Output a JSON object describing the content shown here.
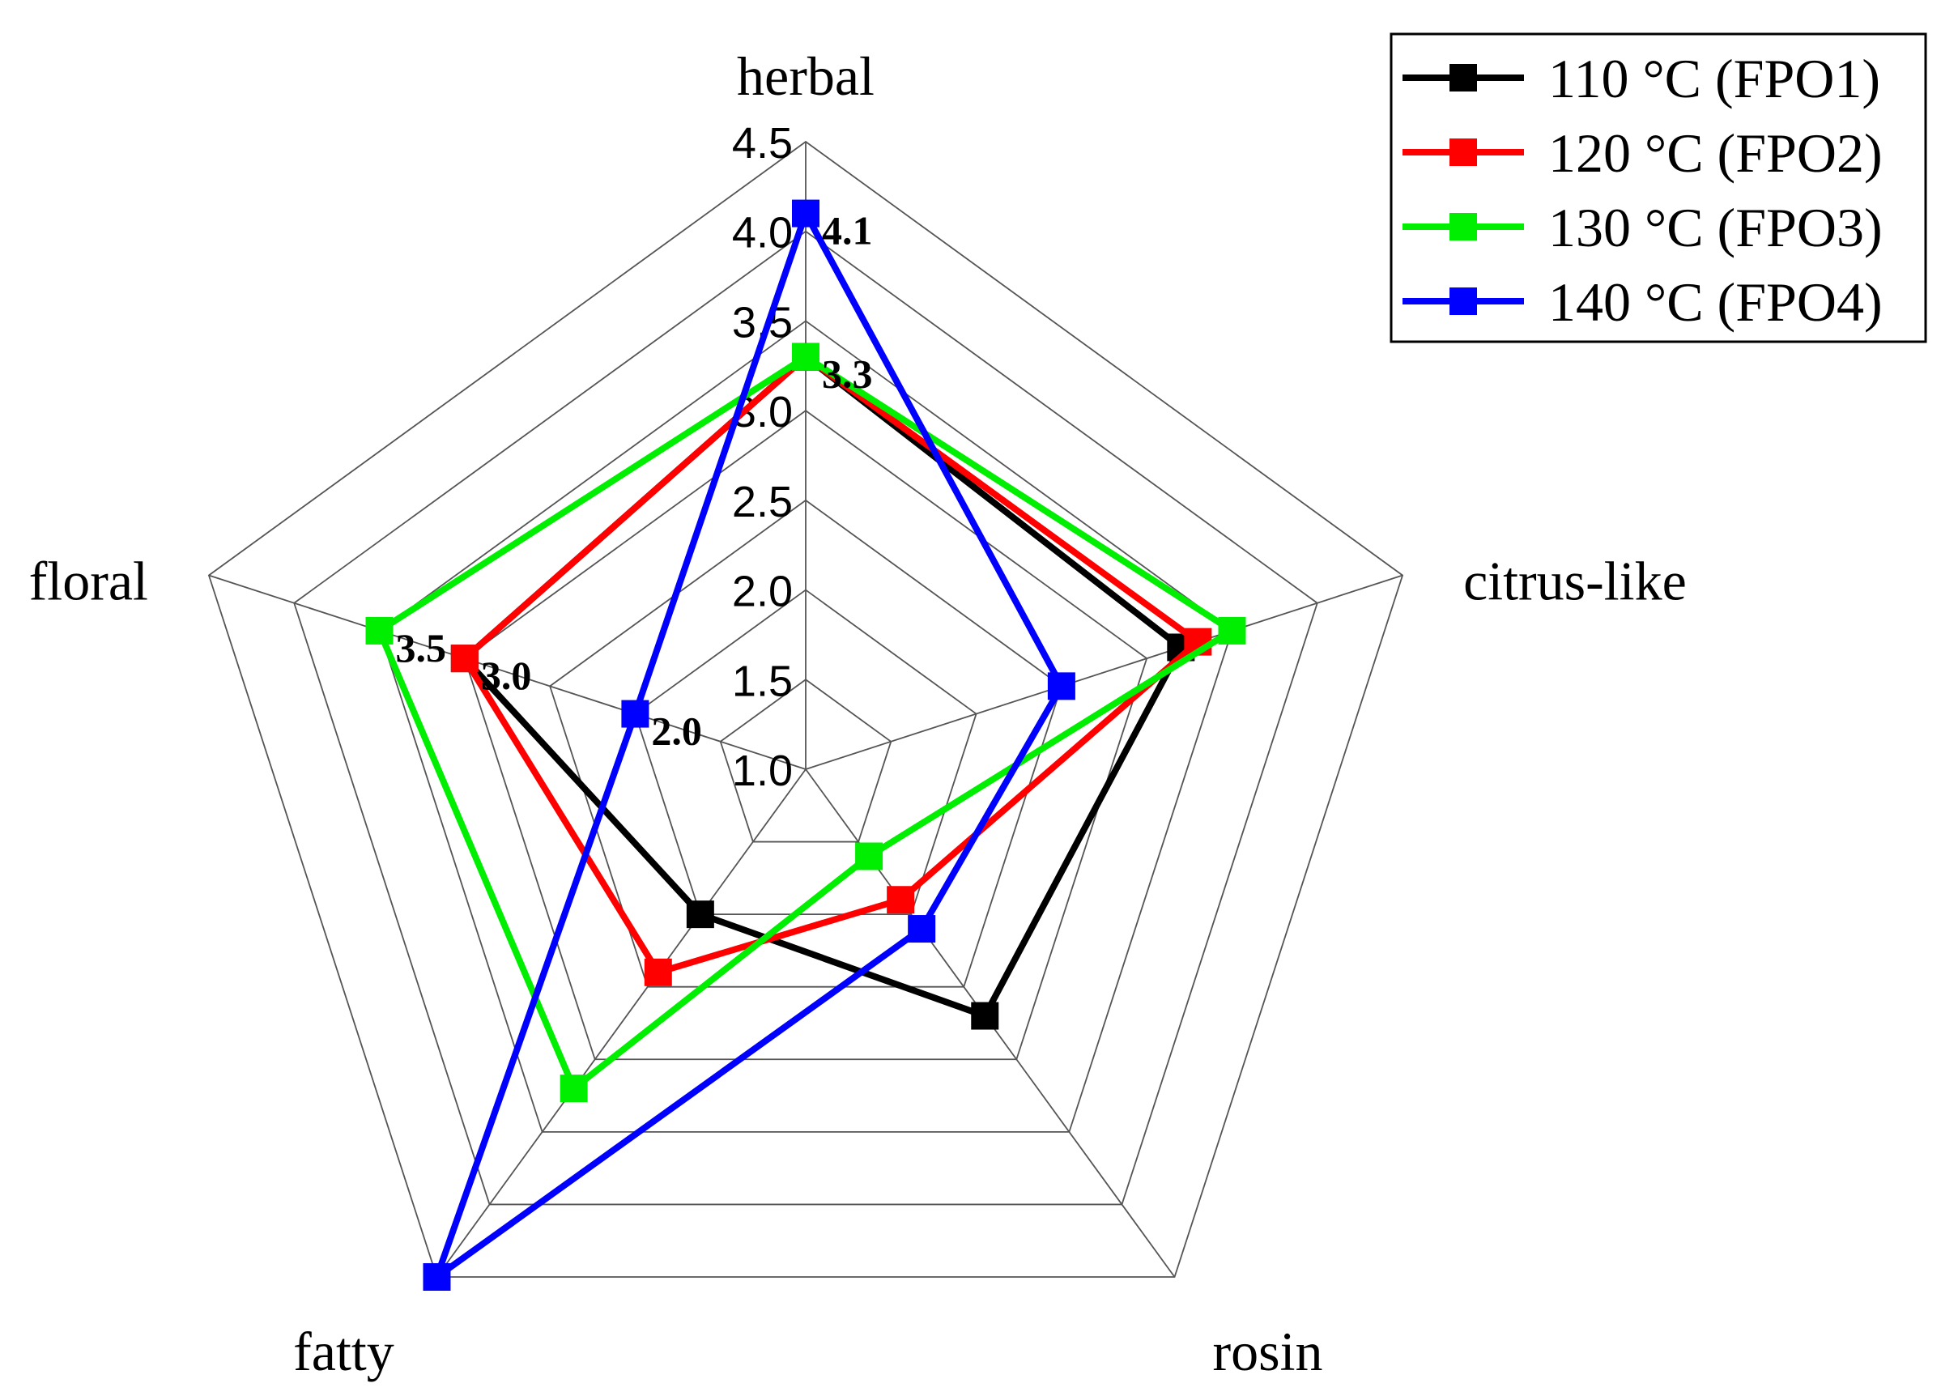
{
  "chart_data": {
    "type": "radar",
    "axes": [
      "herbal",
      "citrus-like",
      "rosin",
      "fatty",
      "floral"
    ],
    "rmin": 1.0,
    "rmax": 4.5,
    "ticks": [
      "1.0",
      "1.5",
      "2.0",
      "2.5",
      "3.0",
      "3.5",
      "4.0",
      "4.5"
    ],
    "tick_values": [
      1.0,
      1.5,
      2.0,
      2.5,
      3.0,
      3.5,
      4.0,
      4.5
    ],
    "grid": true,
    "legend_position": "top-right",
    "series": [
      {
        "name": "110 °C (FPO1)",
        "color": "#000000",
        "values": [
          3.3,
          3.2,
          2.7,
          2.0,
          3.0
        ]
      },
      {
        "name": "120 °C (FPO2)",
        "color": "#ff0000",
        "values": [
          3.3,
          3.3,
          1.9,
          2.4,
          3.0
        ]
      },
      {
        "name": "130 °C (FPO3)",
        "color": "#00ee00",
        "values": [
          3.3,
          3.5,
          1.6,
          3.2,
          3.5
        ]
      },
      {
        "name": "140 °C (FPO4)",
        "color": "#0000ff",
        "values": [
          4.1,
          2.5,
          2.1,
          4.5,
          2.0
        ]
      }
    ],
    "annotations": [
      {
        "text": "4.1",
        "series": 3,
        "axis": 0
      },
      {
        "text": "3.3",
        "series": 2,
        "axis": 0
      },
      {
        "text": "3.5",
        "series": 2,
        "axis": 4
      },
      {
        "text": "3.0",
        "series": 1,
        "axis": 4
      },
      {
        "text": "2.0",
        "series": 3,
        "axis": 4
      }
    ]
  }
}
